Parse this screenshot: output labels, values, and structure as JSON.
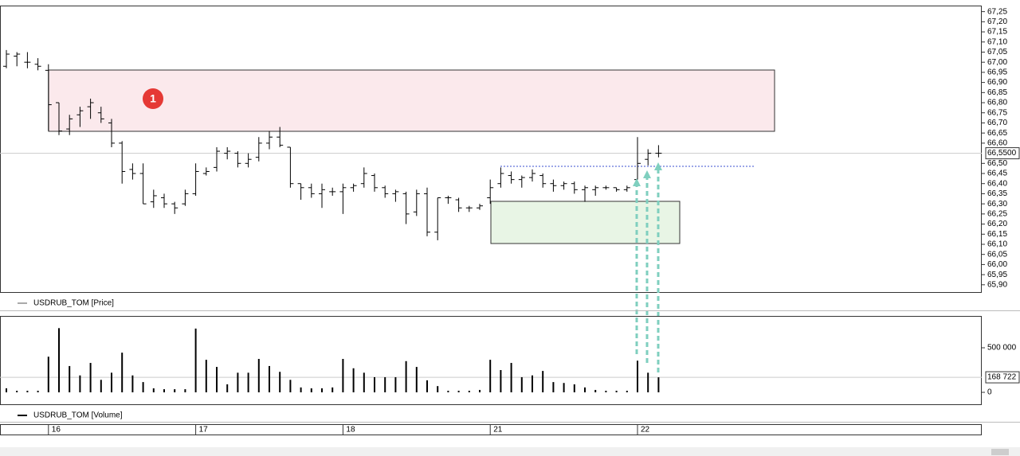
{
  "chart_data": [
    {
      "type": "ohlc",
      "series_name": "USDRUB_TOM [Price]",
      "annotation": "1",
      "color": "#000000",
      "open": [
        66.98,
        67.03,
        67.0,
        66.99,
        66.96,
        66.8,
        66.67,
        66.74,
        66.78,
        66.75,
        66.7,
        66.6,
        66.47,
        66.45,
        66.31,
        66.33,
        66.3,
        66.3,
        66.35,
        66.45,
        66.48,
        66.55,
        66.55,
        66.5,
        66.53,
        66.6,
        66.63,
        66.58,
        66.4,
        66.38,
        66.35,
        66.36,
        66.36,
        66.38,
        66.4,
        66.44,
        66.38,
        66.35,
        66.35,
        66.26,
        66.35,
        66.16,
        66.33,
        66.32,
        66.28,
        66.28,
        66.33,
        66.4,
        66.44,
        66.42,
        66.43,
        66.44,
        66.4,
        66.39,
        66.4,
        66.37,
        66.37,
        66.38,
        66.38,
        66.37,
        66.42,
        66.52,
        66.55
      ],
      "high": [
        67.06,
        67.05,
        67.05,
        67.02,
        66.99,
        66.8,
        66.74,
        66.78,
        66.82,
        66.78,
        66.72,
        66.61,
        66.5,
        66.5,
        66.37,
        66.35,
        66.31,
        66.37,
        66.5,
        66.48,
        66.58,
        66.58,
        66.56,
        66.55,
        66.63,
        66.66,
        66.68,
        66.58,
        66.4,
        66.4,
        66.4,
        66.38,
        66.4,
        66.4,
        66.48,
        66.45,
        66.39,
        66.37,
        66.36,
        66.37,
        66.38,
        66.33,
        66.34,
        66.33,
        66.29,
        66.3,
        66.42,
        66.48,
        66.46,
        66.44,
        66.47,
        66.45,
        66.42,
        66.41,
        66.41,
        66.39,
        66.39,
        66.39,
        66.38,
        66.39,
        66.63,
        66.57,
        66.59
      ],
      "low": [
        66.97,
        66.98,
        66.97,
        66.96,
        66.66,
        66.64,
        66.64,
        66.68,
        66.72,
        66.7,
        66.58,
        66.4,
        66.42,
        66.3,
        66.28,
        66.28,
        66.25,
        66.29,
        66.34,
        66.44,
        66.46,
        66.52,
        66.48,
        66.48,
        66.51,
        66.57,
        66.58,
        66.38,
        66.32,
        66.33,
        66.28,
        66.34,
        66.25,
        66.36,
        66.38,
        66.36,
        66.33,
        66.31,
        66.2,
        66.24,
        66.14,
        66.12,
        66.3,
        66.26,
        66.26,
        66.27,
        66.3,
        66.38,
        66.4,
        66.38,
        66.41,
        66.38,
        66.36,
        66.37,
        66.35,
        66.31,
        66.34,
        66.37,
        66.36,
        66.36,
        66.42,
        66.49,
        66.53
      ],
      "close": [
        67.04,
        67.04,
        67.0,
        66.98,
        66.79,
        66.66,
        66.72,
        66.76,
        66.8,
        66.72,
        66.6,
        66.46,
        66.45,
        66.3,
        66.34,
        66.3,
        66.28,
        66.35,
        66.46,
        66.46,
        66.56,
        66.56,
        66.5,
        66.52,
        66.6,
        66.63,
        66.59,
        66.4,
        66.38,
        66.35,
        66.37,
        66.36,
        66.38,
        66.39,
        66.45,
        66.38,
        66.35,
        66.36,
        66.25,
        66.35,
        66.16,
        66.33,
        66.33,
        66.28,
        66.28,
        66.29,
        66.38,
        66.45,
        66.42,
        66.43,
        66.45,
        66.4,
        66.39,
        66.4,
        66.37,
        66.38,
        66.38,
        66.38,
        66.37,
        66.38,
        66.5,
        66.55,
        66.55
      ],
      "last_price": {
        "value": 66.55,
        "label": "66,5500"
      },
      "ylim": [
        65.86,
        67.28
      ],
      "yticks": [
        {
          "value": 67.25,
          "label": "67,25"
        },
        {
          "value": 67.2,
          "label": "67,20"
        },
        {
          "value": 67.15,
          "label": "67,15"
        },
        {
          "value": 67.1,
          "label": "67,10"
        },
        {
          "value": 67.05,
          "label": "67,05"
        },
        {
          "value": 67.0,
          "label": "67,00"
        },
        {
          "value": 66.95,
          "label": "66,95"
        },
        {
          "value": 66.9,
          "label": "66,90"
        },
        {
          "value": 66.85,
          "label": "66,85"
        },
        {
          "value": 66.8,
          "label": "66,80"
        },
        {
          "value": 66.75,
          "label": "66,75"
        },
        {
          "value": 66.7,
          "label": "66,70"
        },
        {
          "value": 66.65,
          "label": "66,65"
        },
        {
          "value": 66.6,
          "label": "66,60"
        },
        {
          "value": 66.5,
          "label": "66,50"
        },
        {
          "value": 66.45,
          "label": "66,45"
        },
        {
          "value": 66.4,
          "label": "66,40"
        },
        {
          "value": 66.35,
          "label": "66,35"
        },
        {
          "value": 66.3,
          "label": "66,30"
        },
        {
          "value": 66.25,
          "label": "66,25"
        },
        {
          "value": 66.2,
          "label": "66,20"
        },
        {
          "value": 66.15,
          "label": "66,15"
        },
        {
          "value": 66.1,
          "label": "66,10"
        },
        {
          "value": 66.05,
          "label": "66,05"
        },
        {
          "value": 66.0,
          "label": "66,00"
        },
        {
          "value": 65.95,
          "label": "65,95"
        },
        {
          "value": 65.9,
          "label": "65,90"
        }
      ]
    },
    {
      "type": "bar",
      "series_name": "USDRUB_TOM [Volume]",
      "color": "#000000",
      "categories": [
        null,
        null,
        null,
        null,
        "16",
        null,
        null,
        null,
        null,
        null,
        null,
        null,
        null,
        null,
        null,
        null,
        null,
        null,
        "17",
        null,
        null,
        null,
        null,
        null,
        null,
        null,
        null,
        null,
        null,
        null,
        null,
        null,
        "18",
        null,
        null,
        null,
        null,
        null,
        null,
        null,
        null,
        null,
        null,
        null,
        null,
        null,
        "21",
        null,
        null,
        null,
        null,
        null,
        null,
        null,
        null,
        null,
        null,
        null,
        null,
        null,
        "22",
        null,
        null
      ],
      "values": [
        45000,
        18000,
        18000,
        18000,
        400000,
        720000,
        295000,
        190000,
        330000,
        140000,
        220000,
        445000,
        190000,
        115000,
        45000,
        35000,
        35000,
        35000,
        715000,
        365000,
        285000,
        90000,
        220000,
        220000,
        375000,
        295000,
        230000,
        140000,
        55000,
        45000,
        45000,
        55000,
        375000,
        270000,
        220000,
        170000,
        170000,
        170000,
        350000,
        285000,
        135000,
        70000,
        18000,
        18000,
        18000,
        27000,
        365000,
        250000,
        330000,
        170000,
        190000,
        240000,
        115000,
        105000,
        90000,
        55000,
        27000,
        18000,
        18000,
        18000,
        355000,
        220000,
        168722
      ],
      "last_value": {
        "value": 168722,
        "label": "168 722"
      },
      "ylim": [
        -134000,
        857000
      ],
      "yticks": [
        0,
        {
          "value": 500000,
          "label": "500 000"
        }
      ]
    }
  ]
}
